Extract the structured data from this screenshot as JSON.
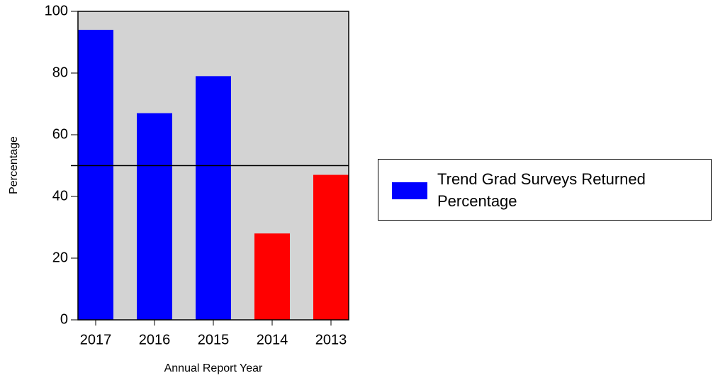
{
  "chart_data": {
    "type": "bar",
    "x_label": "Annual Report Year",
    "y_label": "Percentage",
    "categories": [
      "2017",
      "2016",
      "2015",
      "2014",
      "2013"
    ],
    "series": [
      {
        "name": "Trend Grad Surveys Returned Percentage",
        "color": "#0000ff",
        "values": [
          94,
          67,
          79,
          28,
          47
        ],
        "bar_colors": [
          "#0000ff",
          "#0000ff",
          "#0000ff",
          "#ff0000",
          "#ff0000"
        ]
      }
    ],
    "reference_line": 50,
    "ylim": [
      0,
      100
    ],
    "yticks": [
      0,
      20,
      40,
      60,
      80,
      100
    ],
    "plot_background": "#d3d3d3",
    "legend": "right"
  }
}
